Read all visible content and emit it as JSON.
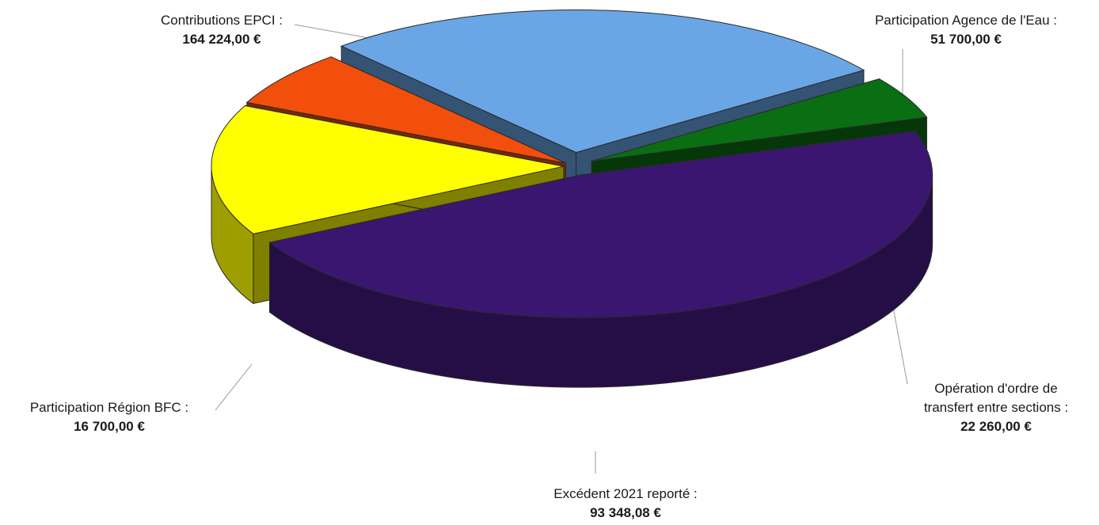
{
  "chart_data": {
    "type": "pie",
    "title": "",
    "style": "3d-exploded",
    "slices": [
      {
        "label": "Contributions EPCI :",
        "value": 164224.0,
        "value_text": "164 224,00 €",
        "color": "#3b1670"
      },
      {
        "label": "Participation Agence de l'Eau :",
        "value": 51700.0,
        "value_text": "51 700,00 €",
        "color": "#ffff00"
      },
      {
        "label": "Opération d'ordre de transfert entre sections :",
        "label_lines": [
          "Opération d'ordre de",
          "transfert entre sections :"
        ],
        "value": 22260.0,
        "value_text": "22 260,00 €",
        "color": "#f24e0c"
      },
      {
        "label": "Excédent 2021 reporté :",
        "value": 93348.08,
        "value_text": "93 348,08 €",
        "color": "#6aa6e6"
      },
      {
        "label": "Participation Région BFC :",
        "value": 16700.0,
        "value_text": "16 700,00 €",
        "color": "#0a6e12"
      }
    ]
  }
}
